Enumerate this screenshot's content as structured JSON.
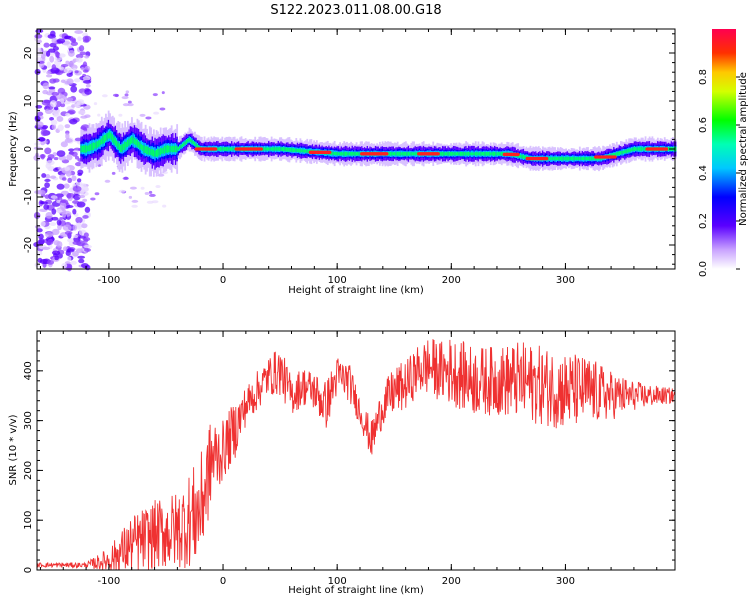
{
  "title": "S122.2023.011.08.00.G18",
  "chart_data": [
    {
      "type": "heatmap",
      "xlabel": "Height of straight line (km)",
      "ylabel": "Frequency (Hz)",
      "xlim": [
        -163,
        396
      ],
      "ylim": [
        -25,
        25
      ],
      "xticks": [
        -100,
        0,
        100,
        200,
        300
      ],
      "yticks": [
        -20,
        -10,
        0,
        10,
        20
      ],
      "colorbar": {
        "label": "Normalized spectral amplitude",
        "range": [
          0,
          1
        ],
        "ticks": [
          0.0,
          0.2,
          0.4,
          0.6,
          0.8
        ]
      },
      "ridge": {
        "x": [
          -163,
          -120,
          -110,
          -100,
          -90,
          -80,
          -70,
          -60,
          -50,
          -40,
          -30,
          -20,
          0,
          50,
          100,
          150,
          200,
          250,
          270,
          300,
          330,
          360,
          396
        ],
        "frequency": [
          0,
          0,
          1,
          3,
          0,
          2,
          0,
          -1,
          0,
          0,
          2,
          0,
          0,
          0,
          -1,
          -1,
          -1,
          -1,
          -2,
          -2,
          -2,
          0,
          0
        ]
      },
      "dominant_color": "#ff2020"
    },
    {
      "type": "line",
      "xlabel": "Height of straight line (km)",
      "ylabel": "SNR (10 * v/v)",
      "xlim": [
        -163,
        396
      ],
      "ylim": [
        0,
        480
      ],
      "xticks": [
        -100,
        0,
        100,
        200,
        300
      ],
      "yticks": [
        0,
        100,
        200,
        300,
        400
      ],
      "envelope": {
        "x": [
          -163,
          -120,
          -100,
          -80,
          -60,
          -40,
          -20,
          -10,
          0,
          10,
          20,
          30,
          40,
          50,
          60,
          70,
          80,
          90,
          100,
          110,
          120,
          130,
          140,
          150,
          160,
          170,
          180,
          190,
          200,
          220,
          240,
          260,
          280,
          300,
          320,
          340,
          360,
          380,
          396
        ],
        "mean": [
          10,
          10,
          20,
          50,
          70,
          80,
          120,
          220,
          240,
          280,
          330,
          360,
          390,
          400,
          350,
          370,
          360,
          330,
          390,
          380,
          320,
          260,
          330,
          360,
          370,
          400,
          410,
          400,
          400,
          380,
          380,
          380,
          370,
          360,
          360,
          350,
          350,
          350,
          350
        ],
        "spread": [
          5,
          5,
          25,
          60,
          70,
          80,
          110,
          90,
          60,
          60,
          40,
          40,
          40,
          50,
          40,
          40,
          40,
          50,
          40,
          40,
          30,
          40,
          40,
          50,
          50,
          50,
          60,
          60,
          70,
          70,
          70,
          80,
          80,
          80,
          70,
          50,
          30,
          20,
          15
        ]
      },
      "series": [
        {
          "color": "#ef3131"
        }
      ]
    }
  ]
}
